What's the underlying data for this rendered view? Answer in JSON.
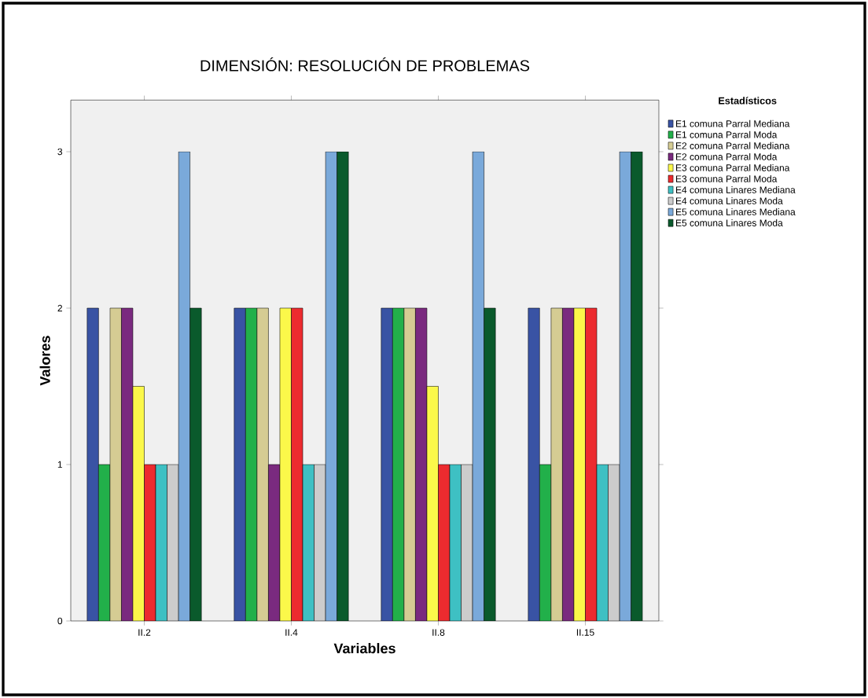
{
  "chart_data": {
    "type": "bar",
    "title": "DIMENSIÓN: RESOLUCIÓN DE PROBLEMAS",
    "xlabel": "Variables",
    "ylabel": "Valores",
    "legend_title": "Estadísticos",
    "categories": [
      "II.2",
      "II.4",
      "II.8",
      "II.15"
    ],
    "series": [
      {
        "name": "E1 comuna Parral Mediana",
        "color": "#3953a4",
        "values": [
          2,
          2,
          2,
          2
        ]
      },
      {
        "name": "E1 comuna Parral Moda",
        "color": "#22b04a",
        "values": [
          1,
          2,
          2,
          1
        ]
      },
      {
        "name": "E2 comuna Parral Mediana",
        "color": "#d5cc93",
        "values": [
          2,
          2,
          2,
          2
        ]
      },
      {
        "name": "E2 comuna Parral Moda",
        "color": "#7a2a7f",
        "values": [
          2,
          1,
          2,
          2
        ]
      },
      {
        "name": "E3 comuna Parral Mediana",
        "color": "#fbf84a",
        "values": [
          1.5,
          2,
          1.5,
          2
        ]
      },
      {
        "name": "E3 comuna Parral Moda",
        "color": "#ec2b2f",
        "values": [
          1,
          2,
          1,
          2
        ]
      },
      {
        "name": "E4 comuna Linares Mediana",
        "color": "#3ec0c3",
        "values": [
          1,
          1,
          1,
          1
        ]
      },
      {
        "name": "E4 comuna Linares Moda",
        "color": "#cccccc",
        "values": [
          1,
          1,
          1,
          1
        ]
      },
      {
        "name": "E5 comuna Linares Mediana",
        "color": "#7aa9da",
        "values": [
          3,
          3,
          3,
          3
        ]
      },
      {
        "name": "E5 comuna Linares Moda",
        "color": "#0a5a2c",
        "values": [
          2,
          3,
          2,
          3
        ]
      }
    ],
    "ylim": [
      0,
      3.33
    ],
    "yticks": [
      0,
      1,
      2,
      3
    ],
    "legend": "right"
  }
}
